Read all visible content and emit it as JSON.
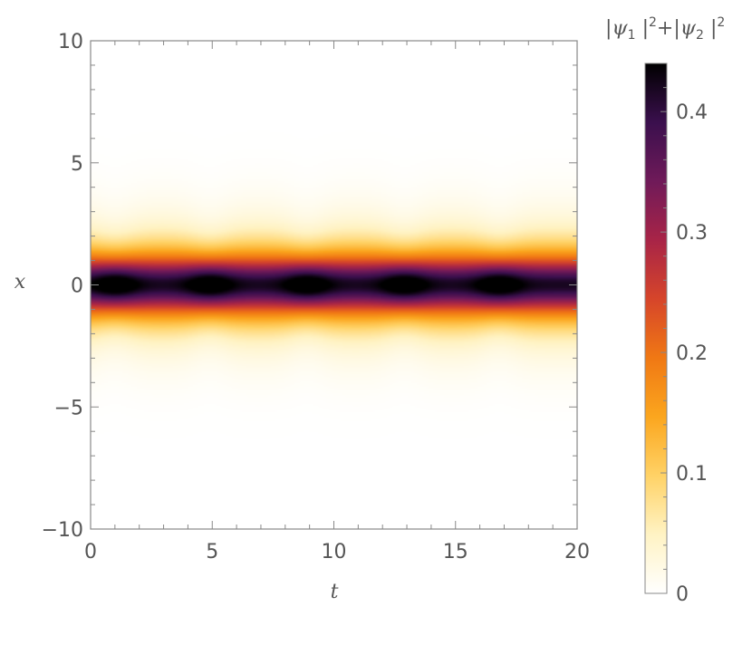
{
  "chart_data": {
    "type": "heatmap",
    "xlabel": "t",
    "ylabel": "x",
    "xlim": [
      0,
      20
    ],
    "ylim": [
      -10,
      10
    ],
    "x_ticks": [
      0,
      5,
      10,
      15,
      20
    ],
    "y_ticks": [
      -10,
      -5,
      0,
      5,
      10
    ],
    "x_tick_labels": [
      "0",
      "5",
      "10",
      "15",
      "20"
    ],
    "y_tick_labels": [
      "−10",
      "−5",
      "0",
      "5",
      "10"
    ],
    "field": {
      "center_x": 0,
      "peak_value": 0.44,
      "min_value_on_center": 0.36,
      "core_half_width": 1.05,
      "halo_amplitude": 0.06,
      "halo_half_width": 2.8,
      "peak_times": [
        1.0,
        4.9,
        8.9,
        12.9,
        16.8
      ],
      "oscillation_period": 3.95
    },
    "colorbar": {
      "label_parts": [
        "|ψ",
        "1",
        " |",
        "2",
        "+|ψ",
        "2",
        " |",
        "2"
      ],
      "range": [
        0,
        0.44
      ],
      "ticks": [
        0,
        0.1,
        0.2,
        0.3,
        0.4
      ],
      "tick_labels": [
        "0",
        "0.1",
        "0.2",
        "0.3",
        "0.4"
      ],
      "colormap": [
        "#ffffff",
        "#fff3c4",
        "#ffd266",
        "#fba61e",
        "#f07814",
        "#d6452a",
        "#a82447",
        "#6f1a59",
        "#3a0f4d",
        "#000000"
      ]
    },
    "frame_color": "#888888",
    "grid": false,
    "legend": "colorbar right"
  }
}
